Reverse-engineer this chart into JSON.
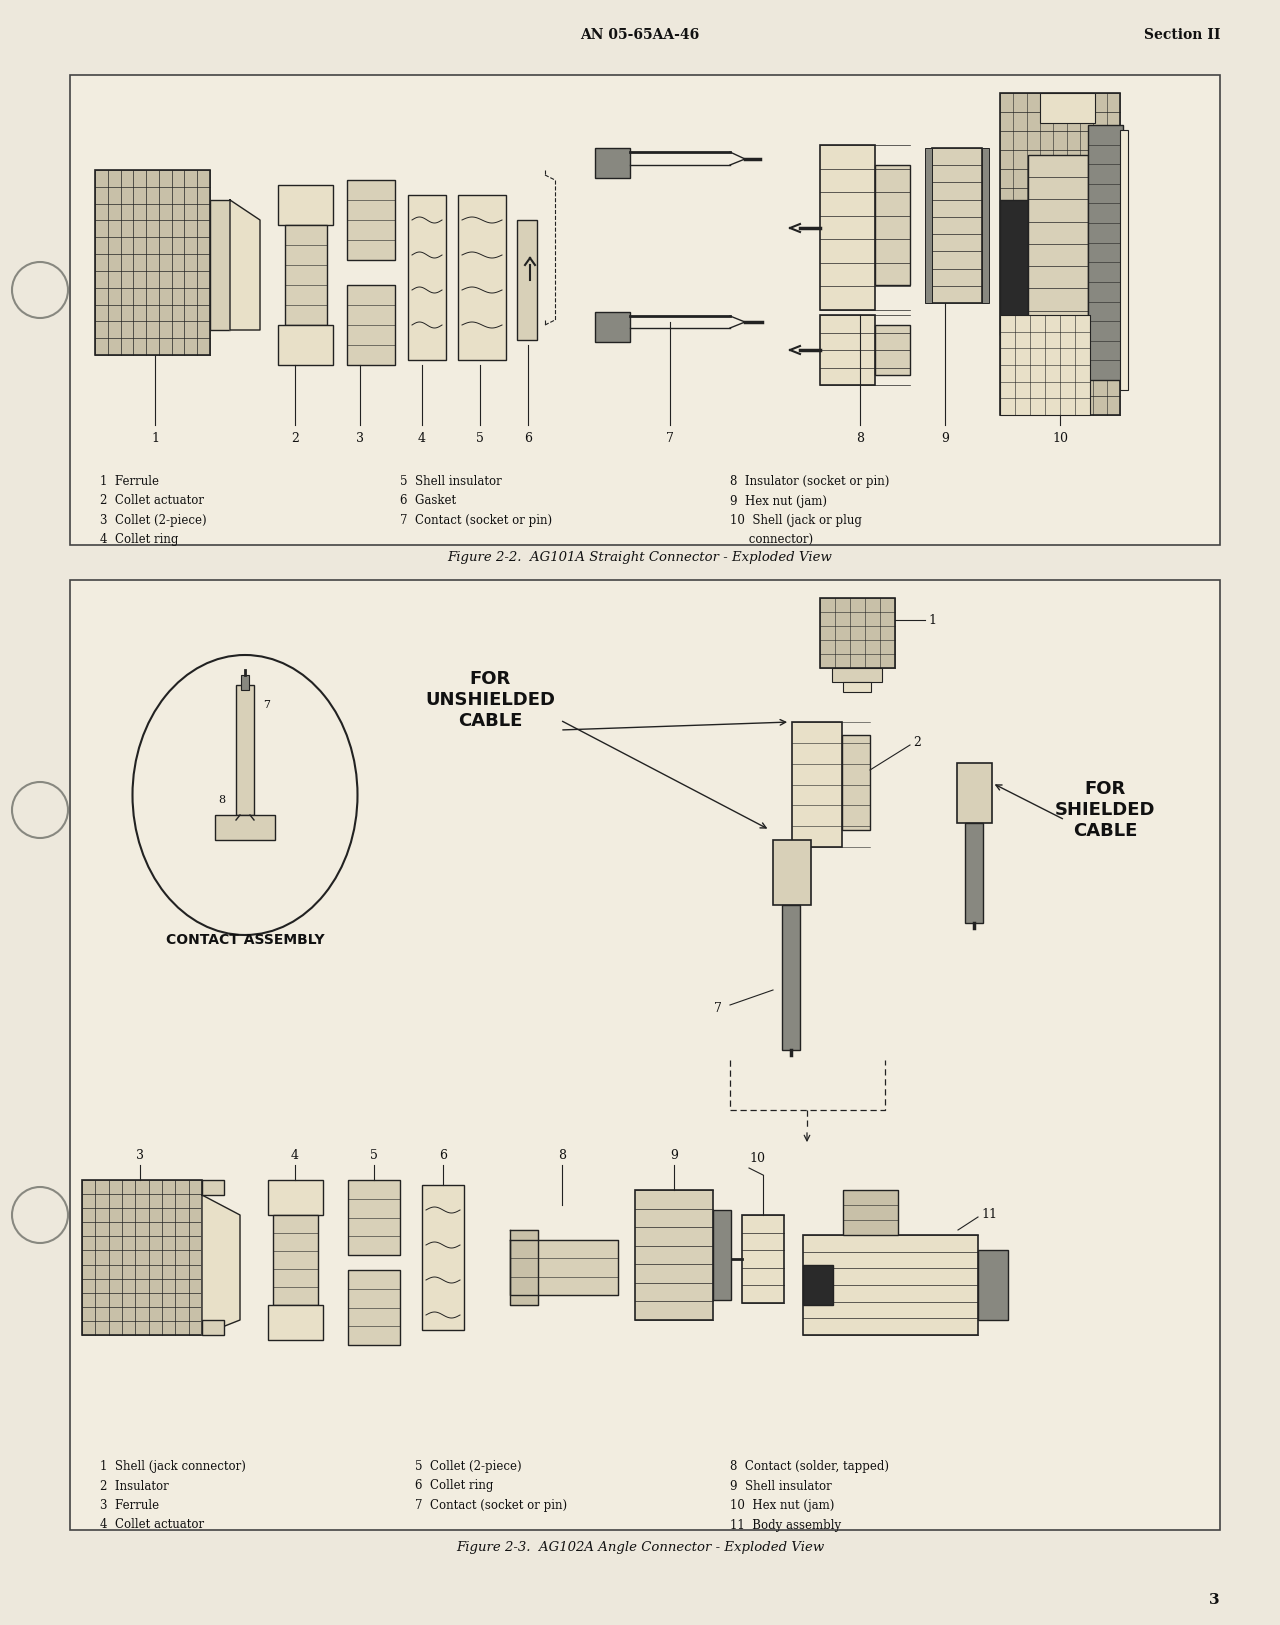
{
  "page_bg": "#EDE8DC",
  "box_bg": "#F2EDE0",
  "header_center": "AN 05-65AA-46",
  "header_right": "Section II",
  "page_number": "3",
  "fig1_title": "Figure 2-2.  AG101A Straight Connector - Exploded View",
  "fig2_title": "Figure 2-3.  AG102A Angle Connector - Exploded View",
  "text_color": "#111111",
  "box_border": "#444444",
  "line_color": "#222222",
  "dark_fill": "#2a2a2a",
  "mid_fill": "#888880",
  "light_fill": "#C8C0A8",
  "lighter_fill": "#D8D0B8",
  "lightest_fill": "#E8E0C8"
}
